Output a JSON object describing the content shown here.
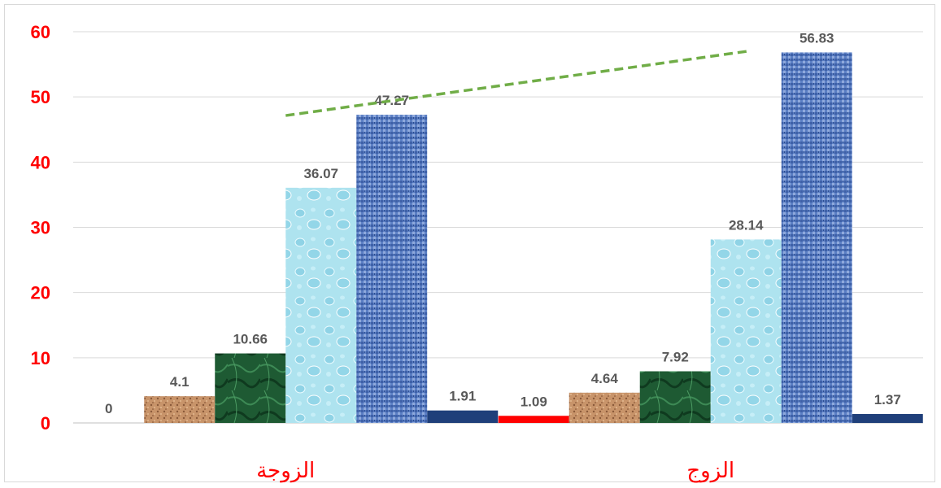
{
  "chart_data": {
    "type": "bar",
    "categories": [
      "الزوجة",
      "الزوج"
    ],
    "series": [
      {
        "values": [
          0,
          1.09
        ],
        "color": "#ff0000",
        "fill": "solid-red"
      },
      {
        "values": [
          4.1,
          4.64
        ],
        "color": "#c8946a",
        "fill": "brown-grain-texture"
      },
      {
        "values": [
          10.66,
          7.92
        ],
        "color": "#1e5a33",
        "fill": "green-marble-texture"
      },
      {
        "values": [
          36.07,
          28.14
        ],
        "color": "#aee3ef",
        "fill": "water-droplets-texture"
      },
      {
        "values": [
          47.27,
          56.83
        ],
        "color": "#5b7fc4",
        "fill": "blue-denim-texture"
      },
      {
        "values": [
          1.91,
          1.37
        ],
        "color": "#1f3f7a",
        "fill": "solid-navy"
      }
    ],
    "ylim": [
      0,
      60
    ],
    "yticks": [
      0,
      10,
      20,
      30,
      40,
      50,
      60
    ],
    "grid": true,
    "legend": "none",
    "trendline": {
      "style": "dashed",
      "color": "#70ad47"
    },
    "tick_color": "#ff0000",
    "category_label_color": "#ff0000"
  }
}
